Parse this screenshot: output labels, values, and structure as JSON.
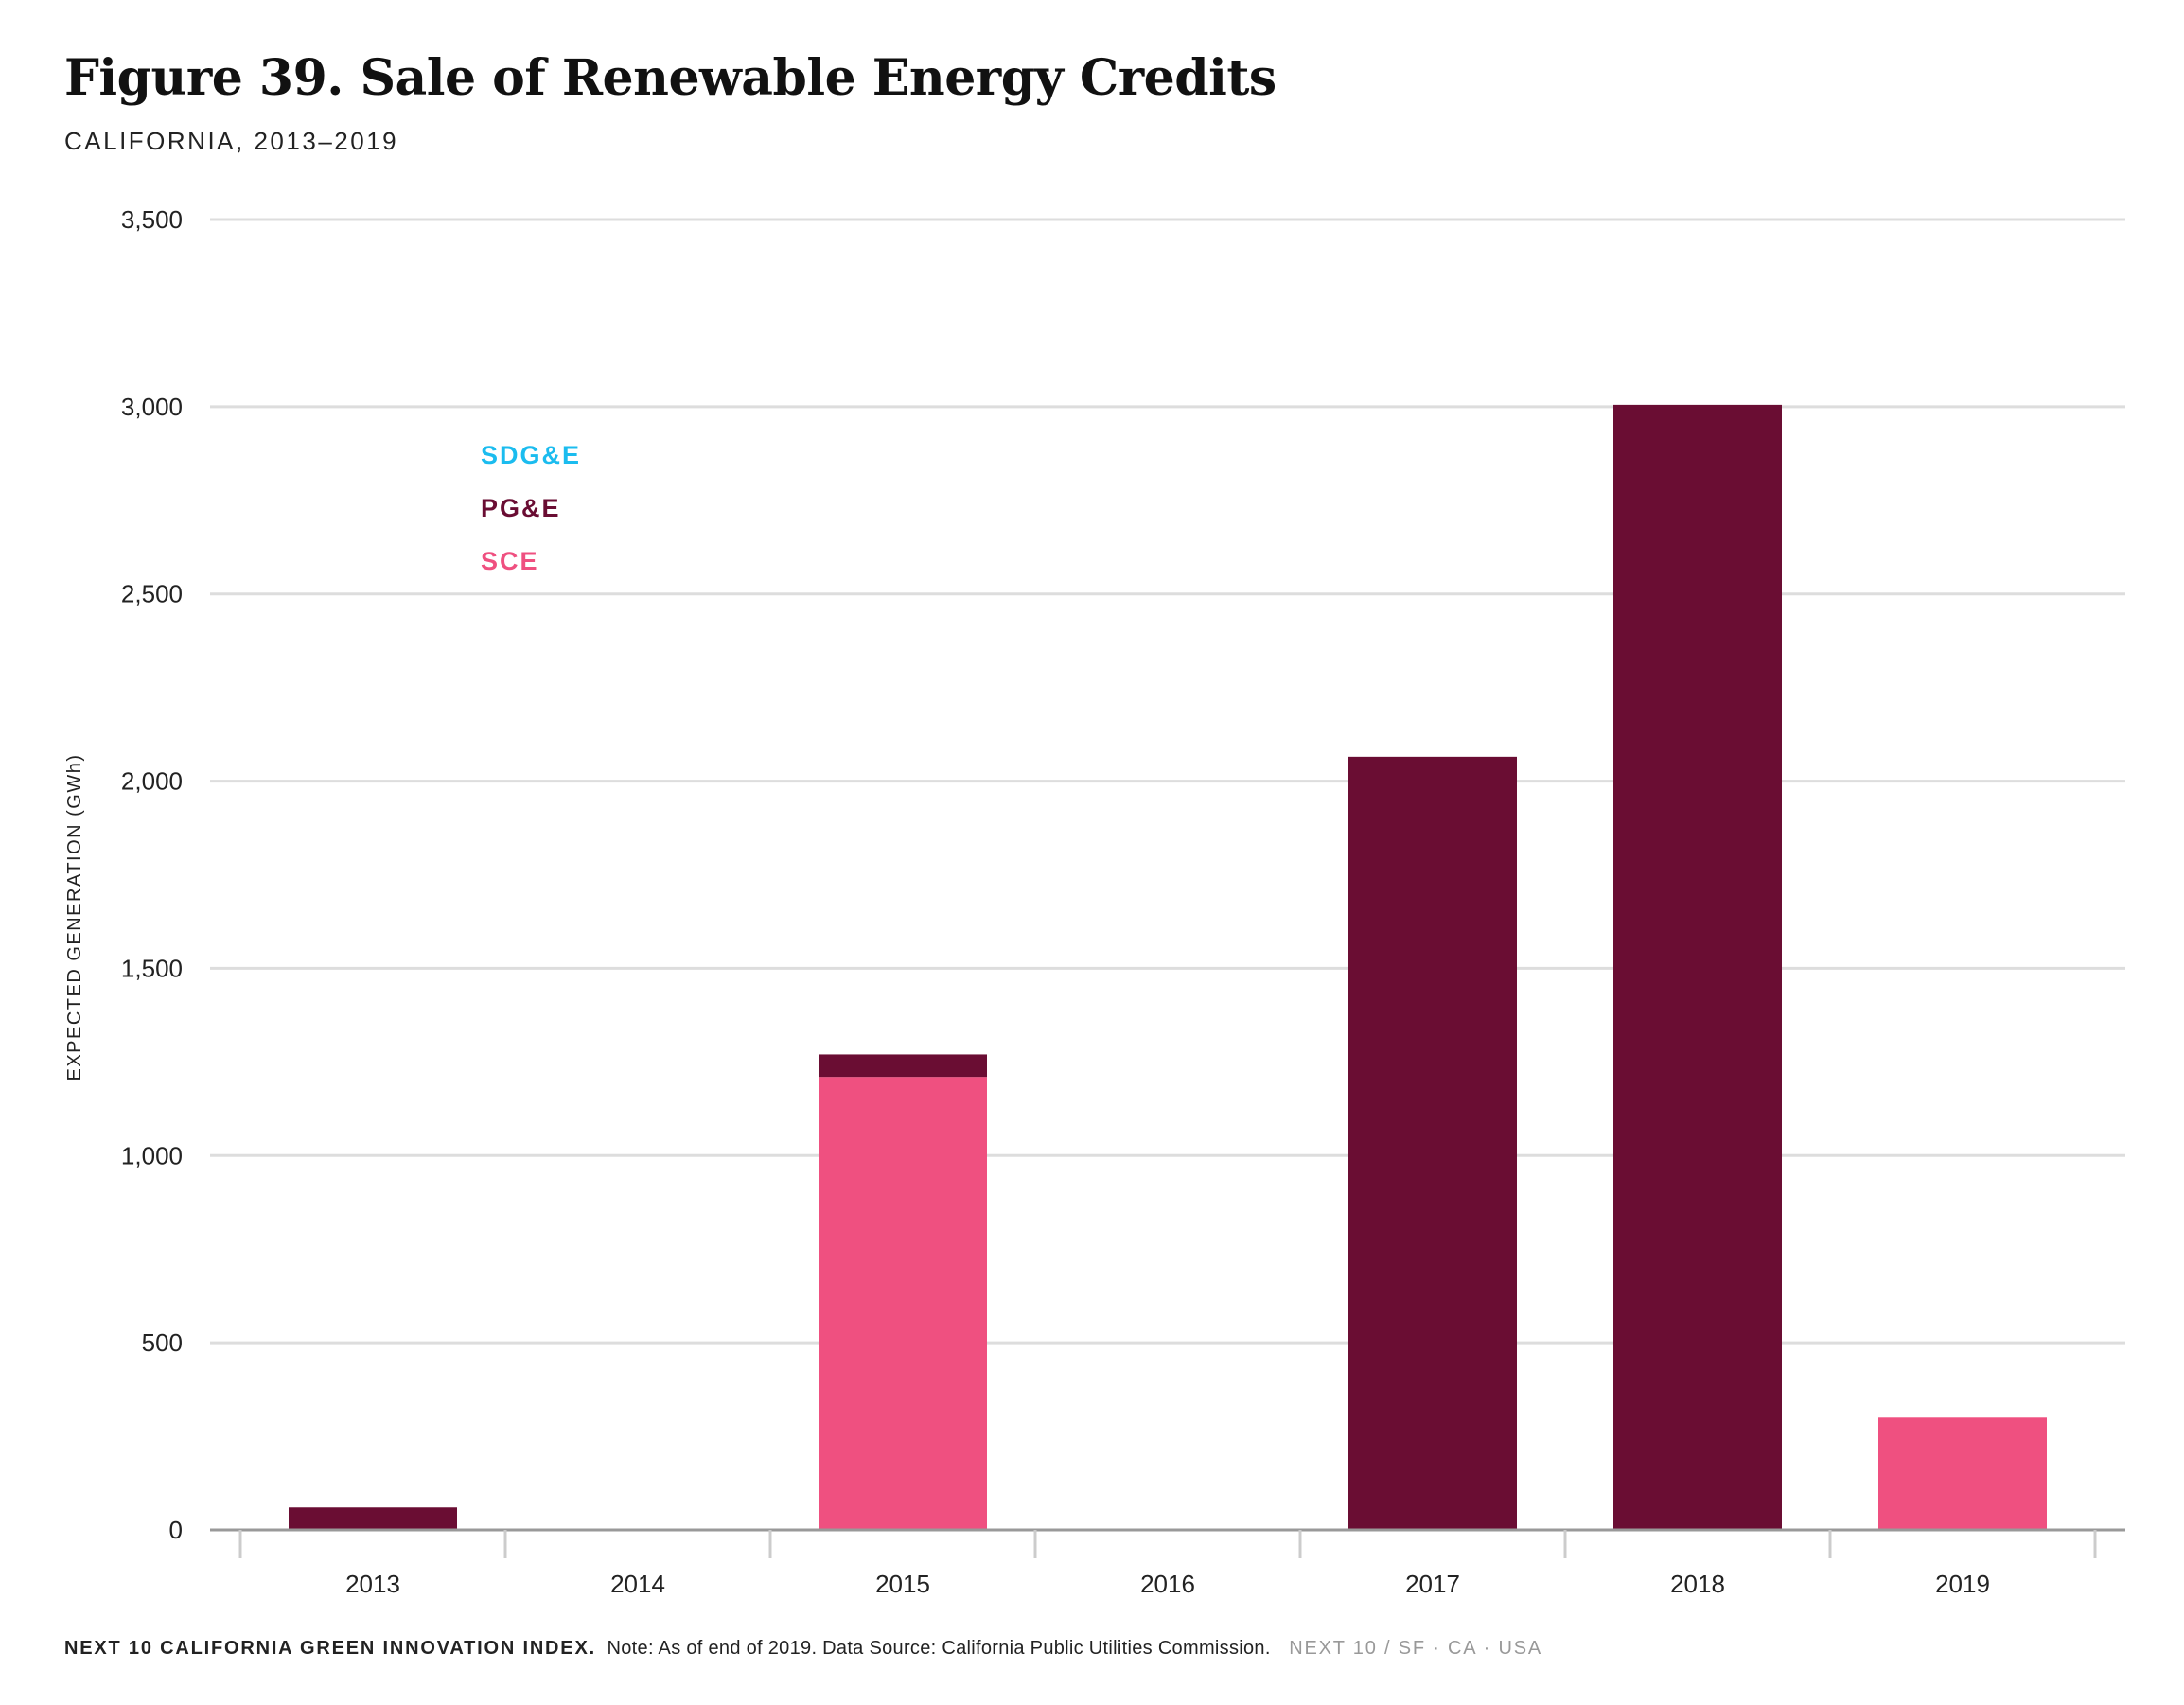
{
  "header": {
    "title": "Figure 39. Sale of Renewable Energy Credits",
    "subtitle": "CALIFORNIA, 2013–2019"
  },
  "footer": {
    "brand": "NEXT 10 CALIFORNIA GREEN INNOVATION INDEX.",
    "note": "Note: As of end of 2019. Data Source: California Public Utilities Commission.",
    "tag": "NEXT 10  /  SF · CA · USA"
  },
  "chart_data": {
    "type": "bar",
    "stacked": true,
    "categories": [
      "2013",
      "2014",
      "2015",
      "2016",
      "2017",
      "2018",
      "2019"
    ],
    "series": [
      {
        "name": "SCE",
        "color": "#ef5080",
        "values": [
          0,
          0,
          1210,
          0,
          0,
          0,
          300
        ]
      },
      {
        "name": "PG&E",
        "color": "#6a0d33",
        "values": [
          60,
          0,
          60,
          0,
          2065,
          3005,
          0
        ]
      },
      {
        "name": "SDG&E",
        "color": "#1bbcef",
        "values": [
          0,
          0,
          0,
          0,
          0,
          0,
          0
        ]
      }
    ],
    "legend_order": [
      "SDG&E",
      "PG&E",
      "SCE"
    ],
    "legend_placement": "top-left",
    "ylabel": "EXPECTED GENERATION (GWh)",
    "xlabel": "",
    "ylim": [
      0,
      3500
    ],
    "yticks": [
      0,
      500,
      1000,
      1500,
      2000,
      2500,
      3000,
      3500
    ],
    "ytick_labels": [
      "0",
      "500",
      "1,000",
      "1,500",
      "2,000",
      "2,500",
      "3,000",
      "3,500"
    ],
    "grid": true,
    "grid_color": "#dddddd",
    "axis_color": "#999999"
  }
}
